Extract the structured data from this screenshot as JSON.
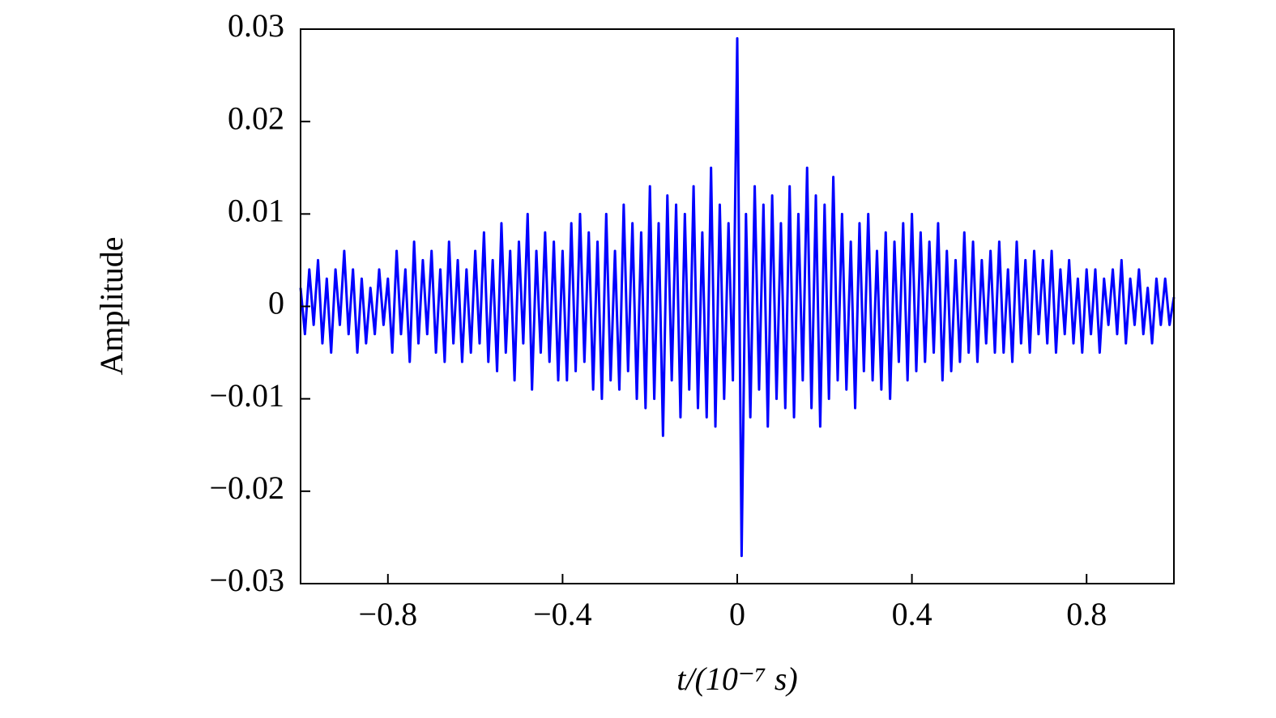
{
  "chart_data": {
    "type": "line",
    "xlabel": "t/(10⁻⁷ s)",
    "ylabel": "Amplitude",
    "color": "#0000ff",
    "xlim": [
      -1,
      1
    ],
    "xticks": [
      {
        "value": -0.8,
        "label": "−0.8"
      },
      {
        "value": -0.4,
        "label": "−0.4"
      },
      0,
      0.4,
      0.8
    ],
    "ylim": [
      -0.03,
      0.03
    ],
    "yticks": [
      {
        "value": -0.03,
        "label": "−0.03"
      },
      {
        "value": -0.02,
        "label": "−0.02"
      },
      {
        "value": -0.01,
        "label": "−0.01"
      },
      0,
      0.01,
      0.02,
      0.03
    ],
    "x": [
      -1.0,
      -0.99,
      -0.98,
      -0.97,
      -0.96,
      -0.95,
      -0.94,
      -0.93,
      -0.92,
      -0.91,
      -0.9,
      -0.89,
      -0.88,
      -0.87,
      -0.86,
      -0.85,
      -0.84,
      -0.83,
      -0.82,
      -0.81,
      -0.8,
      -0.79,
      -0.78,
      -0.77,
      -0.76,
      -0.75,
      -0.74,
      -0.73,
      -0.72,
      -0.71,
      -0.7,
      -0.69,
      -0.68,
      -0.67,
      -0.66,
      -0.65,
      -0.64,
      -0.63,
      -0.62,
      -0.61,
      -0.6,
      -0.59,
      -0.58,
      -0.57,
      -0.56,
      -0.55,
      -0.54,
      -0.53,
      -0.52,
      -0.51,
      -0.5,
      -0.49,
      -0.48,
      -0.47,
      -0.46,
      -0.45,
      -0.44,
      -0.43,
      -0.42,
      -0.41,
      -0.4,
      -0.39,
      -0.38,
      -0.37,
      -0.36,
      -0.35,
      -0.34,
      -0.33,
      -0.32,
      -0.31,
      -0.3,
      -0.29,
      -0.28,
      -0.27,
      -0.26,
      -0.25,
      -0.24,
      -0.23,
      -0.22,
      -0.21,
      -0.2,
      -0.19,
      -0.18,
      -0.17,
      -0.16,
      -0.15,
      -0.14,
      -0.13,
      -0.12,
      -0.11,
      -0.1,
      -0.09,
      -0.08,
      -0.07,
      -0.06,
      -0.05,
      -0.04,
      -0.03,
      -0.02,
      -0.01,
      0.0,
      0.01,
      0.02,
      0.03,
      0.04,
      0.05,
      0.06,
      0.07,
      0.08,
      0.09,
      0.1,
      0.11,
      0.12,
      0.13,
      0.14,
      0.15,
      0.16,
      0.17,
      0.18,
      0.19,
      0.2,
      0.21,
      0.22,
      0.23,
      0.24,
      0.25,
      0.26,
      0.27,
      0.28,
      0.29,
      0.3,
      0.31,
      0.32,
      0.33,
      0.34,
      0.35,
      0.36,
      0.37,
      0.38,
      0.39,
      0.4,
      0.41,
      0.42,
      0.43,
      0.44,
      0.45,
      0.46,
      0.47,
      0.48,
      0.49,
      0.5,
      0.51,
      0.52,
      0.53,
      0.54,
      0.55,
      0.56,
      0.57,
      0.58,
      0.59,
      0.6,
      0.61,
      0.62,
      0.63,
      0.64,
      0.65,
      0.66,
      0.67,
      0.68,
      0.69,
      0.7,
      0.71,
      0.72,
      0.73,
      0.74,
      0.75,
      0.76,
      0.77,
      0.78,
      0.79,
      0.8,
      0.81,
      0.82,
      0.83,
      0.84,
      0.85,
      0.86,
      0.87,
      0.88,
      0.89,
      0.9,
      0.91,
      0.92,
      0.93,
      0.94,
      0.95,
      0.96,
      0.97,
      0.98,
      0.99,
      1.0
    ],
    "values": [
      0.002,
      -0.003,
      0.004,
      -0.002,
      0.005,
      -0.004,
      0.003,
      -0.005,
      0.004,
      -0.002,
      0.006,
      -0.003,
      0.004,
      -0.005,
      0.003,
      -0.004,
      0.002,
      -0.003,
      0.004,
      -0.002,
      0.003,
      -0.005,
      0.006,
      -0.003,
      0.004,
      -0.006,
      0.007,
      -0.004,
      0.005,
      -0.003,
      0.006,
      -0.005,
      0.004,
      -0.006,
      0.007,
      -0.004,
      0.005,
      -0.006,
      0.004,
      -0.005,
      0.006,
      -0.004,
      0.008,
      -0.006,
      0.005,
      -0.007,
      0.009,
      -0.005,
      0.006,
      -0.008,
      0.007,
      -0.004,
      0.01,
      -0.009,
      0.006,
      -0.005,
      0.008,
      -0.006,
      0.007,
      -0.008,
      0.006,
      -0.008,
      0.009,
      -0.007,
      0.01,
      -0.006,
      0.008,
      -0.009,
      0.007,
      -0.01,
      0.01,
      -0.008,
      0.006,
      -0.009,
      0.011,
      -0.007,
      0.009,
      -0.01,
      0.008,
      -0.011,
      0.013,
      -0.01,
      0.009,
      -0.014,
      0.012,
      -0.008,
      0.011,
      -0.012,
      0.01,
      -0.009,
      0.013,
      -0.011,
      0.008,
      -0.012,
      0.015,
      -0.013,
      0.011,
      -0.01,
      0.009,
      -0.008,
      0.029,
      -0.027,
      0.01,
      -0.012,
      0.013,
      -0.009,
      0.011,
      -0.013,
      0.012,
      -0.01,
      0.009,
      -0.011,
      0.013,
      -0.012,
      0.01,
      -0.008,
      0.015,
      -0.011,
      0.012,
      -0.013,
      0.011,
      -0.01,
      0.014,
      -0.008,
      0.01,
      -0.009,
      0.007,
      -0.011,
      0.009,
      -0.007,
      0.01,
      -0.008,
      0.006,
      -0.009,
      0.008,
      -0.01,
      0.007,
      -0.006,
      0.009,
      -0.008,
      0.01,
      -0.007,
      0.008,
      -0.006,
      0.007,
      -0.005,
      0.009,
      -0.008,
      0.006,
      -0.007,
      0.005,
      -0.006,
      0.008,
      -0.005,
      0.007,
      -0.006,
      0.005,
      -0.004,
      0.006,
      -0.005,
      0.007,
      -0.005,
      0.004,
      -0.006,
      0.007,
      -0.004,
      0.005,
      -0.005,
      0.006,
      -0.003,
      0.005,
      -0.004,
      0.006,
      -0.005,
      0.004,
      -0.003,
      0.005,
      -0.004,
      0.003,
      -0.005,
      0.004,
      -0.003,
      0.004,
      -0.005,
      0.003,
      -0.002,
      0.004,
      -0.003,
      0.005,
      -0.004,
      0.003,
      -0.002,
      0.004,
      -0.003,
      0.002,
      -0.004,
      0.003,
      -0.002,
      0.003,
      -0.002,
      0.001
    ]
  }
}
